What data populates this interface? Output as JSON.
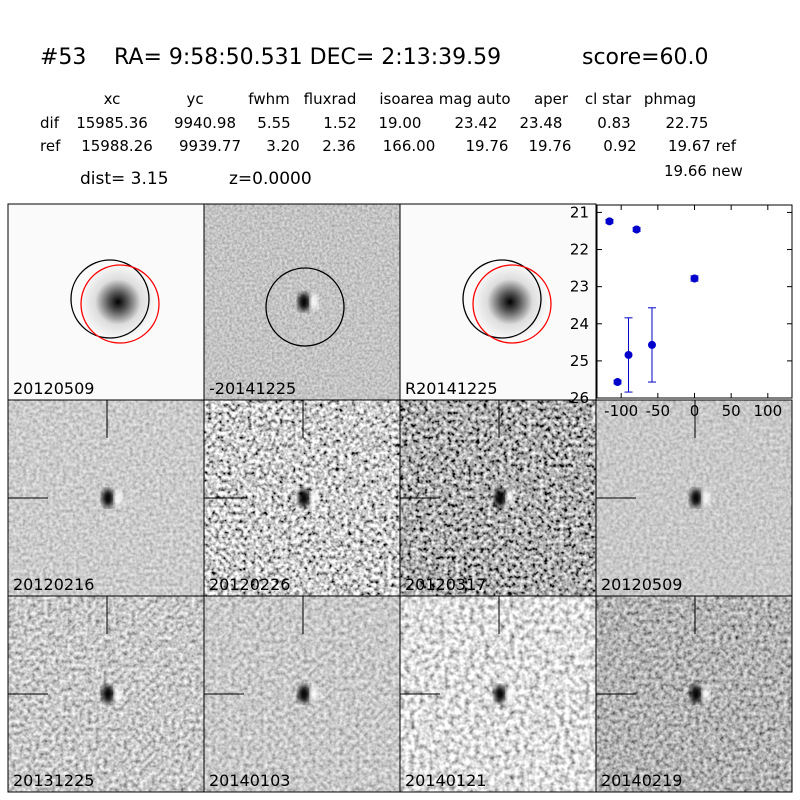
{
  "header": {
    "id": "#53",
    "coords": "RA= 9:58:50.531 DEC= 2:13:39.59",
    "score": "score=60.0",
    "dist": "dist=  3.15",
    "z": "z=0.0000",
    "extra": "19.66 new"
  },
  "table": {
    "columns": [
      "xc",
      "yc",
      "fwhm",
      "fluxrad",
      "isoarea mag auto",
      "aper",
      "cl star",
      "phmag"
    ],
    "rows": [
      {
        "label": "dif",
        "cells": [
          "15985.36",
          "9940.98",
          "5.55",
          "1.52",
          "19.00",
          "23.42",
          "23.48",
          "0.83",
          "22.75"
        ]
      },
      {
        "label": "ref",
        "cells": [
          "15988.26",
          "9939.77",
          "3.20",
          "2.36",
          "166.00",
          "19.76",
          "19.76",
          "0.92",
          "19.67 ref"
        ]
      }
    ]
  },
  "stamps": [
    {
      "label": "20120509"
    },
    {
      "label": "-20141225"
    },
    {
      "label": "R20141225"
    },
    {
      "label": "20120216"
    },
    {
      "label": "20120226"
    },
    {
      "label": "20120317"
    },
    {
      "label": "20120509",
      "label_color": "#ff0000"
    },
    {
      "label": "20131225"
    },
    {
      "label": "20140103"
    },
    {
      "label": "20140121"
    },
    {
      "label": "20140219"
    }
  ],
  "chart_data": {
    "type": "errorbar",
    "x": [
      -116,
      -105,
      -90,
      -79,
      -58,
      0
    ],
    "values": [
      21.24,
      25.57,
      24.84,
      21.46,
      24.57,
      22.78
    ],
    "errors": [
      0.05,
      0.05,
      1.0,
      0.05,
      1.0,
      0.07
    ],
    "color": "#0000cc",
    "xlim": [
      -133,
      133
    ],
    "ylim": [
      26,
      20.8
    ],
    "xticks": [
      -100,
      -50,
      0,
      50,
      100
    ],
    "yticks": [
      21,
      22,
      23,
      24,
      25,
      26
    ]
  }
}
